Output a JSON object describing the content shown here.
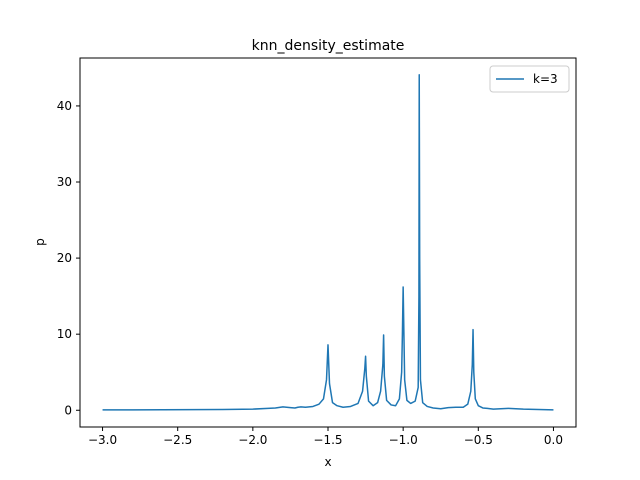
{
  "chart_data": {
    "type": "line",
    "title": "knn_density_estimate",
    "xlabel": "x",
    "ylabel": "p",
    "xlim": [
      -3.15,
      0.15
    ],
    "ylim": [
      -2.2,
      46.3
    ],
    "xticks": [
      -3.0,
      -2.5,
      -2.0,
      -1.5,
      -1.0,
      -0.5,
      0.0
    ],
    "xtick_labels": [
      "−3.0",
      "−2.5",
      "−2.0",
      "−1.5",
      "−1.0",
      "−0.5",
      "0.0"
    ],
    "yticks": [
      0,
      10,
      20,
      30,
      40
    ],
    "ytick_labels": [
      "0",
      "10",
      "20",
      "30",
      "40"
    ],
    "grid": false,
    "legend_position": "top-right",
    "series": [
      {
        "name": "k=3",
        "color": "#1f77b4",
        "x": [
          -3.0,
          -2.8,
          -2.6,
          -2.4,
          -2.2,
          -2.0,
          -1.9,
          -1.85,
          -1.8,
          -1.75,
          -1.72,
          -1.7,
          -1.68,
          -1.65,
          -1.6,
          -1.56,
          -1.53,
          -1.51,
          -1.5,
          -1.49,
          -1.47,
          -1.44,
          -1.4,
          -1.35,
          -1.3,
          -1.27,
          -1.255,
          -1.25,
          -1.245,
          -1.23,
          -1.2,
          -1.17,
          -1.15,
          -1.135,
          -1.13,
          -1.125,
          -1.11,
          -1.08,
          -1.05,
          -1.025,
          -1.01,
          -1.005,
          -1.0,
          -0.99,
          -0.975,
          -0.95,
          -0.92,
          -0.9,
          -0.895,
          -0.893,
          -0.89,
          -0.885,
          -0.87,
          -0.84,
          -0.8,
          -0.75,
          -0.7,
          -0.65,
          -0.6,
          -0.57,
          -0.55,
          -0.54,
          -0.535,
          -0.53,
          -0.52,
          -0.5,
          -0.47,
          -0.44,
          -0.4,
          -0.35,
          -0.3,
          -0.25,
          -0.2,
          -0.1,
          0.0
        ],
        "y": [
          0.05,
          0.05,
          0.06,
          0.08,
          0.1,
          0.15,
          0.25,
          0.3,
          0.45,
          0.35,
          0.3,
          0.4,
          0.45,
          0.4,
          0.5,
          0.8,
          1.5,
          4.0,
          8.6,
          3.5,
          1.0,
          0.6,
          0.4,
          0.5,
          0.9,
          2.5,
          5.5,
          7.1,
          4.5,
          1.2,
          0.6,
          1.0,
          2.5,
          6.0,
          9.9,
          4.5,
          1.3,
          0.7,
          0.6,
          1.5,
          5.0,
          10.0,
          16.2,
          4.0,
          1.3,
          0.9,
          1.2,
          3.0,
          15.0,
          44.1,
          20.0,
          4.0,
          1.0,
          0.5,
          0.3,
          0.2,
          0.35,
          0.4,
          0.4,
          0.8,
          2.5,
          6.0,
          10.6,
          5.0,
          1.5,
          0.6,
          0.3,
          0.25,
          0.15,
          0.2,
          0.25,
          0.2,
          0.15,
          0.1,
          0.05
        ]
      }
    ]
  }
}
